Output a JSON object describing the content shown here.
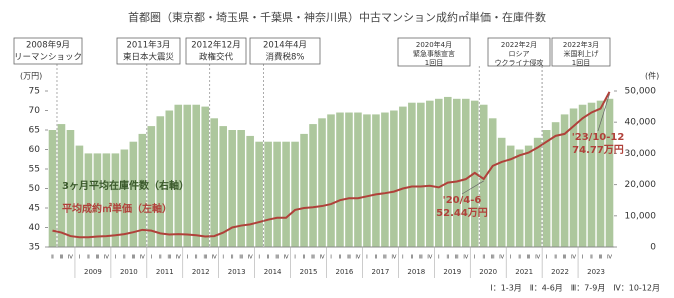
{
  "chart_data": {
    "type": "bar-line",
    "title": "首都圏（東京都・埼玉県・千葉県・神奈川県）中古マンション成約㎡単価・在庫件数",
    "y_label": "(万円)",
    "y2_label": "(件)",
    "categories": [
      "Ⅱ",
      "Ⅲ",
      "Ⅳ",
      "Ⅰ",
      "Ⅱ",
      "Ⅲ",
      "Ⅳ",
      "Ⅰ",
      "Ⅱ",
      "Ⅲ",
      "Ⅳ",
      "Ⅰ",
      "Ⅱ",
      "Ⅲ",
      "Ⅳ",
      "Ⅰ",
      "Ⅱ",
      "Ⅲ",
      "Ⅳ",
      "Ⅰ",
      "Ⅱ",
      "Ⅲ",
      "Ⅳ",
      "Ⅰ",
      "Ⅱ",
      "Ⅲ",
      "Ⅳ",
      "Ⅰ",
      "Ⅱ",
      "Ⅲ",
      "Ⅳ",
      "Ⅰ",
      "Ⅱ",
      "Ⅲ",
      "Ⅳ",
      "Ⅰ",
      "Ⅱ",
      "Ⅲ",
      "Ⅳ",
      "Ⅰ",
      "Ⅱ",
      "Ⅲ",
      "Ⅳ",
      "Ⅰ",
      "Ⅱ",
      "Ⅲ",
      "Ⅳ",
      "Ⅰ",
      "Ⅱ",
      "Ⅲ",
      "Ⅳ",
      "Ⅰ",
      "Ⅱ",
      "Ⅲ",
      "Ⅳ",
      "Ⅰ",
      "Ⅱ",
      "Ⅲ",
      "Ⅳ",
      "Ⅰ",
      "Ⅱ",
      "Ⅲ",
      "Ⅳ"
    ],
    "years": [
      "2009",
      "2010",
      "2011",
      "2012",
      "2013",
      "2014",
      "2015",
      "2016",
      "2017",
      "2018",
      "2019",
      "2020",
      "2021",
      "2022",
      "2023"
    ],
    "ylim": [
      35,
      75
    ],
    "yticks": [
      35,
      40,
      45,
      50,
      55,
      60,
      65,
      70,
      75
    ],
    "y2lim": [
      0,
      50000
    ],
    "y2ticks": [
      0,
      {
        "value": 10000,
        "label": "10,000"
      },
      {
        "value": 20000,
        "label": "20,000"
      },
      {
        "value": 30000,
        "label": "30,000"
      },
      {
        "value": 40000,
        "label": "40,000"
      },
      {
        "value": 50000,
        "label": "50,000"
      }
    ],
    "series": [
      {
        "name": "3ヶ月平均在庫件数（右軸）",
        "color": "#adc79d",
        "axis": "y2",
        "kind": "bar",
        "values": [
          37500,
          39400,
          37500,
          32500,
          30000,
          30000,
          30000,
          30000,
          31250,
          33750,
          36250,
          38750,
          41900,
          43750,
          45600,
          45600,
          45600,
          45000,
          41250,
          38750,
          37500,
          37500,
          35600,
          33750,
          33750,
          33750,
          33750,
          33750,
          36250,
          39400,
          41250,
          42500,
          43100,
          43100,
          43100,
          42500,
          42500,
          43100,
          43750,
          45000,
          46250,
          46250,
          46900,
          47500,
          48100,
          47500,
          47500,
          46900,
          45600,
          41250,
          35000,
          32500,
          31250,
          32500,
          35000,
          37500,
          40000,
          42500,
          44400,
          45600,
          46250,
          46900,
          47500
        ]
      },
      {
        "name": "平均成約㎡単価（左軸）",
        "color": "#b0413a",
        "kind": "line",
        "values": [
          39.2,
          38.7,
          37.8,
          37.5,
          37.5,
          37.7,
          37.8,
          38,
          38.3,
          38.8,
          39.4,
          39.2,
          38.5,
          38.2,
          38.3,
          38.2,
          38,
          37.7,
          37.8,
          38.7,
          40,
          40.5,
          40.8,
          41.4,
          42,
          42.5,
          42.5,
          44.5,
          45,
          45.2,
          45.5,
          46,
          47,
          47.5,
          47.5,
          48,
          48.5,
          48.8,
          49.2,
          50,
          50.5,
          50.5,
          50.7,
          50.3,
          51.5,
          51.8,
          52.4,
          54,
          52.44,
          55.8,
          56.8,
          57.5,
          58.5,
          59.2,
          60.5,
          62,
          63.5,
          64,
          66,
          68,
          69.5,
          70.5,
          74.77
        ]
      }
    ],
    "events": [
      [
        "2008年9月",
        "リーマンショック"
      ],
      [
        "2011年3月",
        "東日本大震災"
      ],
      [
        "2012年12月",
        "政権交代"
      ],
      [
        "2014年4月",
        "消費税8%"
      ],
      [
        "2020年4月",
        "緊急事態宣言",
        "1回目"
      ],
      [
        "2022年2月",
        "ロシア",
        "ウクライナ侵攻"
      ],
      [
        "2022年3月",
        "米国利上げ",
        "1回目"
      ]
    ],
    "annotations": [
      [
        "'20/4-6",
        "52.44万円"
      ],
      [
        "'23/10-12",
        "74.77万円"
      ]
    ],
    "footnote": "Ⅰ：1-3月　Ⅱ：4-6月　Ⅲ：7-9月　Ⅳ：10-12月"
  }
}
